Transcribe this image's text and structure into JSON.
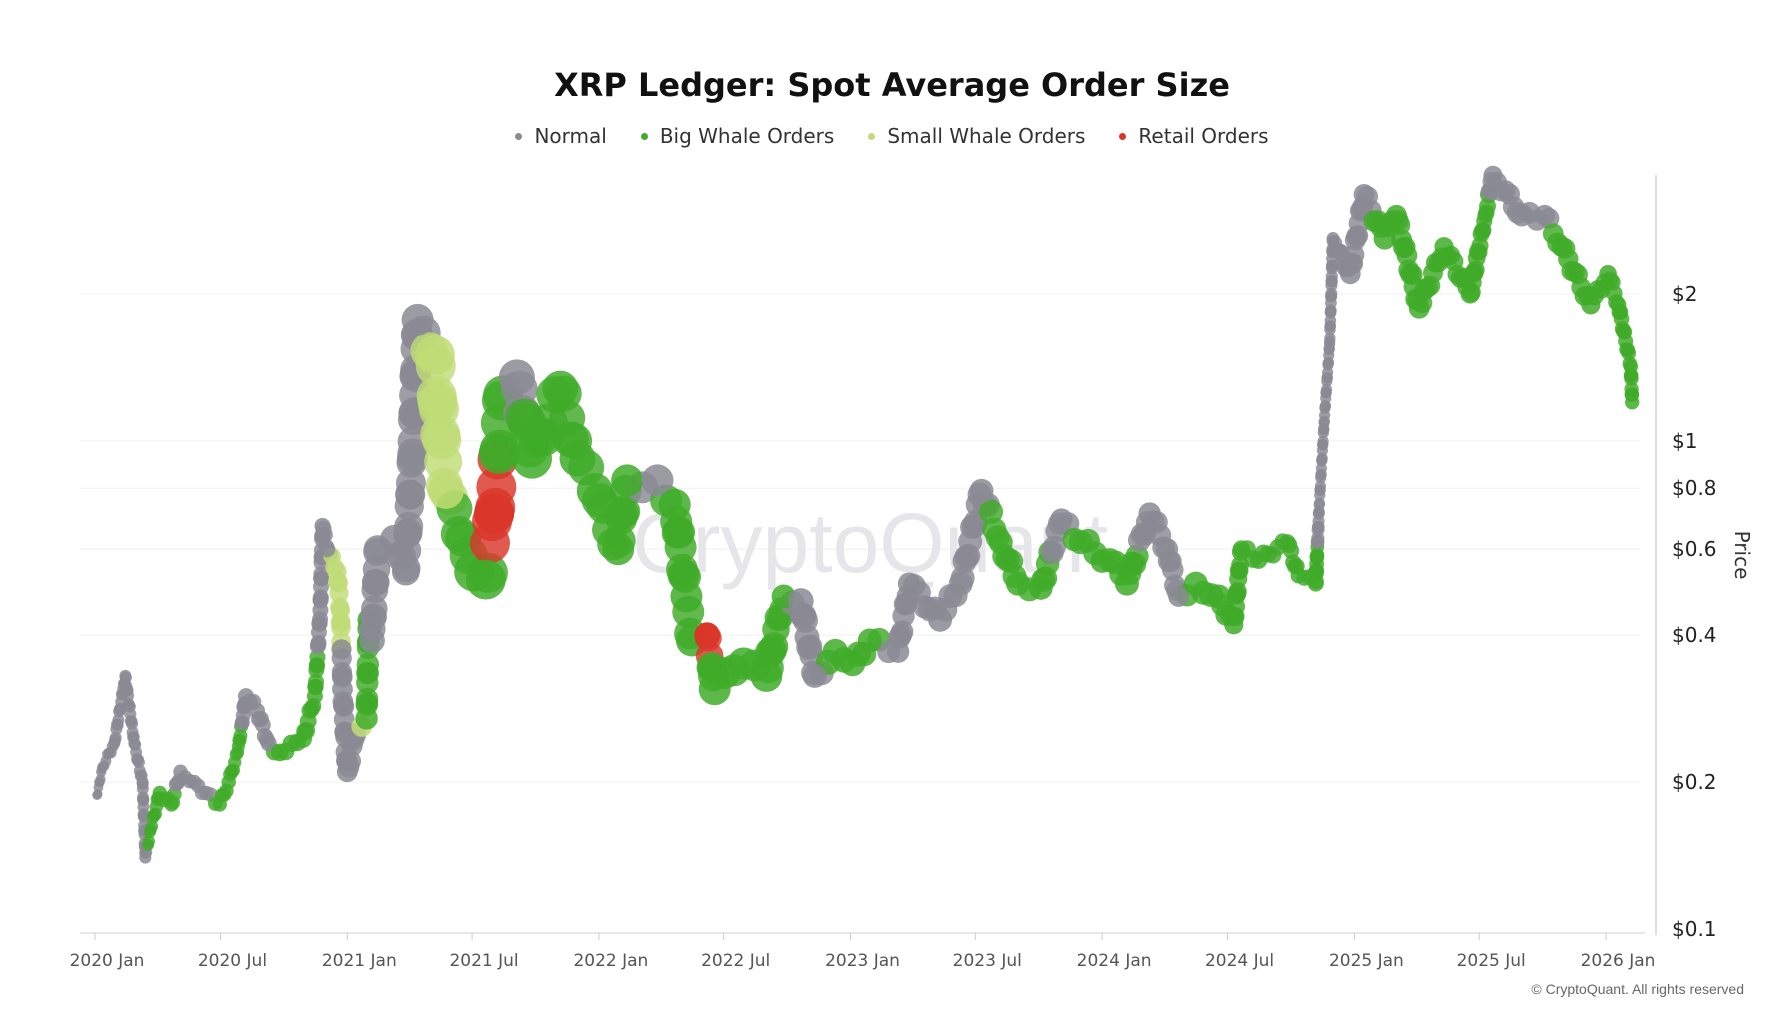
{
  "chart_data": {
    "type": "scatter",
    "title": "XRP Ledger: Spot Average Order Size",
    "ylabel": "Price",
    "xlabel": "",
    "yscale": "log",
    "ylim": [
      0.1,
      3.6
    ],
    "xlim": [
      "2019-12-20",
      "2026-03-01"
    ],
    "grid": true,
    "legend_position": "top-center",
    "watermark": "CryptoQuant",
    "copyright": "© CryptoQuant. All rights reserved",
    "y_ticks": [
      {
        "value": 0.1,
        "label": "$0.1"
      },
      {
        "value": 0.2,
        "label": "$0.2"
      },
      {
        "value": 0.4,
        "label": "$0.4"
      },
      {
        "value": 0.6,
        "label": "$0.6"
      },
      {
        "value": 0.8,
        "label": "$0.8"
      },
      {
        "value": 1,
        "label": "$1"
      },
      {
        "value": 2,
        "label": "$2"
      }
    ],
    "x_ticks": [
      {
        "date": "2020-01-01",
        "label": "2020 Jan"
      },
      {
        "date": "2020-07-01",
        "label": "2020 Jul"
      },
      {
        "date": "2021-01-01",
        "label": "2021 Jan"
      },
      {
        "date": "2021-07-01",
        "label": "2021 Jul"
      },
      {
        "date": "2022-01-01",
        "label": "2022 Jan"
      },
      {
        "date": "2022-07-01",
        "label": "2022 Jul"
      },
      {
        "date": "2023-01-01",
        "label": "2023 Jan"
      },
      {
        "date": "2023-07-01",
        "label": "2023 Jul"
      },
      {
        "date": "2024-01-01",
        "label": "2024 Jan"
      },
      {
        "date": "2024-07-01",
        "label": "2024 Jul"
      },
      {
        "date": "2025-01-01",
        "label": "2025 Jan"
      },
      {
        "date": "2025-07-01",
        "label": "2025 Jul"
      },
      {
        "date": "2026-01-01",
        "label": "2026 Jan"
      }
    ],
    "categories": [
      {
        "key": "normal",
        "name": "Normal",
        "color": "#8a8994"
      },
      {
        "key": "big",
        "name": "Big Whale Orders",
        "color": "#3fab28"
      },
      {
        "key": "small",
        "name": "Small Whale Orders",
        "color": "#bfdc75"
      },
      {
        "key": "retail",
        "name": "Retail Orders",
        "color": "#d9362a"
      }
    ],
    "point_fields": [
      "date",
      "price",
      "category",
      "relative_order_size"
    ],
    "points": [
      [
        "2020-01-04",
        0.188,
        "normal",
        1.2
      ],
      [
        "2020-01-12",
        0.215,
        "normal",
        1.3
      ],
      [
        "2020-01-29",
        0.24,
        "normal",
        1.5
      ],
      [
        "2020-02-11",
        0.31,
        "normal",
        1.5
      ],
      [
        "2020-02-14",
        0.33,
        "normal",
        1.5
      ],
      [
        "2020-02-27",
        0.24,
        "normal",
        1.5
      ],
      [
        "2020-03-10",
        0.2,
        "normal",
        1.5
      ],
      [
        "2020-03-14",
        0.14,
        "normal",
        1.5
      ],
      [
        "2020-03-22",
        0.16,
        "big",
        1.5
      ],
      [
        "2020-04-04",
        0.19,
        "big",
        1.8
      ],
      [
        "2020-04-21",
        0.18,
        "big",
        1.8
      ],
      [
        "2020-05-04",
        0.21,
        "normal",
        1.8
      ],
      [
        "2020-05-24",
        0.2,
        "normal",
        1.8
      ],
      [
        "2020-06-10",
        0.19,
        "normal",
        1.8
      ],
      [
        "2020-06-30",
        0.18,
        "big",
        1.8
      ],
      [
        "2020-07-13",
        0.2,
        "big",
        1.8
      ],
      [
        "2020-07-26",
        0.23,
        "big",
        1.6
      ],
      [
        "2020-08-07",
        0.3,
        "normal",
        2
      ],
      [
        "2020-08-23",
        0.28,
        "normal",
        2
      ],
      [
        "2020-09-09",
        0.24,
        "normal",
        2
      ],
      [
        "2020-09-25",
        0.23,
        "big",
        2.2
      ],
      [
        "2020-10-12",
        0.24,
        "big",
        2.2
      ],
      [
        "2020-10-29",
        0.245,
        "big",
        2.2
      ],
      [
        "2020-11-15",
        0.3,
        "big",
        2
      ],
      [
        "2020-11-23",
        0.45,
        "normal",
        2
      ],
      [
        "2020-11-26",
        0.67,
        "normal",
        2
      ],
      [
        "2020-12-03",
        0.6,
        "normal",
        2
      ],
      [
        "2020-12-17",
        0.54,
        "small",
        2.4
      ],
      [
        "2020-12-22",
        0.45,
        "small",
        2.4
      ],
      [
        "2020-12-25",
        0.31,
        "normal",
        2.6
      ],
      [
        "2021-01-01",
        0.21,
        "normal",
        2.6
      ],
      [
        "2021-01-12",
        0.25,
        "normal",
        2.8
      ],
      [
        "2021-01-22",
        0.26,
        "small",
        2.6
      ],
      [
        "2021-01-29",
        0.27,
        "big",
        2.8
      ],
      [
        "2021-02-01",
        0.43,
        "big",
        2.8
      ],
      [
        "2021-02-06",
        0.39,
        "normal",
        3.2
      ],
      [
        "2021-02-14",
        0.6,
        "normal",
        3.5
      ],
      [
        "2021-03-10",
        0.63,
        "normal",
        3.5
      ],
      [
        "2021-03-27",
        0.54,
        "normal",
        3.5
      ],
      [
        "2021-04-05",
        0.92,
        "normal",
        3.8
      ],
      [
        "2021-04-13",
        1.77,
        "normal",
        4
      ],
      [
        "2021-05-08",
        1.5,
        "small",
        5
      ],
      [
        "2021-05-12",
        1.2,
        "small",
        5
      ],
      [
        "2021-05-16",
        1.03,
        "small",
        5
      ],
      [
        "2021-05-24",
        0.79,
        "small",
        4.5
      ],
      [
        "2021-06-18",
        0.63,
        "big",
        4.5
      ],
      [
        "2021-07-04",
        0.54,
        "big",
        5
      ],
      [
        "2021-07-21",
        0.52,
        "big",
        5
      ],
      [
        "2021-08-02",
        0.71,
        "retail",
        5
      ],
      [
        "2021-08-15",
        1.24,
        "big",
        5
      ],
      [
        "2021-09-04",
        1.35,
        "normal",
        4.5
      ],
      [
        "2021-09-26",
        0.92,
        "big",
        5
      ],
      [
        "2021-11-06",
        1.28,
        "big",
        4.5
      ],
      [
        "2021-12-01",
        0.92,
        "big",
        4.5
      ],
      [
        "2021-12-26",
        0.79,
        "big",
        4.5
      ],
      [
        "2022-01-29",
        0.6,
        "big",
        4
      ],
      [
        "2022-02-11",
        0.83,
        "big",
        4
      ],
      [
        "2022-03-27",
        0.83,
        "normal",
        4
      ],
      [
        "2022-04-21",
        0.74,
        "big",
        4
      ],
      [
        "2022-05-08",
        0.48,
        "big",
        4
      ],
      [
        "2022-05-16",
        0.39,
        "big",
        4
      ],
      [
        "2022-06-07",
        0.4,
        "retail",
        3.2
      ],
      [
        "2022-06-18",
        0.31,
        "big",
        4
      ],
      [
        "2022-07-30",
        0.35,
        "big",
        4
      ],
      [
        "2022-09-01",
        0.33,
        "big",
        4
      ],
      [
        "2022-09-26",
        0.48,
        "big",
        3
      ],
      [
        "2022-10-21",
        0.47,
        "normal",
        3.2
      ],
      [
        "2022-11-10",
        0.33,
        "normal",
        3
      ],
      [
        "2022-12-10",
        0.37,
        "big",
        3.2
      ],
      [
        "2023-01-04",
        0.35,
        "big",
        3.2
      ],
      [
        "2023-01-29",
        0.39,
        "big",
        3
      ],
      [
        "2023-03-11",
        0.37,
        "normal",
        2.8
      ],
      [
        "2023-03-27",
        0.51,
        "normal",
        2.8
      ],
      [
        "2023-05-11",
        0.43,
        "normal",
        3
      ],
      [
        "2023-06-10",
        0.51,
        "normal",
        3
      ],
      [
        "2023-07-10",
        0.79,
        "normal",
        3
      ],
      [
        "2023-08-07",
        0.62,
        "big",
        3
      ],
      [
        "2023-09-01",
        0.51,
        "big",
        3
      ],
      [
        "2023-10-04",
        0.5,
        "big",
        3
      ],
      [
        "2023-11-03",
        0.69,
        "normal",
        2.8
      ],
      [
        "2023-12-01",
        0.62,
        "big",
        3
      ],
      [
        "2024-01-12",
        0.57,
        "big",
        3
      ],
      [
        "2024-02-06",
        0.51,
        "big",
        3
      ],
      [
        "2024-03-10",
        0.71,
        "normal",
        2.8
      ],
      [
        "2024-04-04",
        0.6,
        "normal",
        2.8
      ],
      [
        "2024-04-21",
        0.48,
        "normal",
        2.6
      ],
      [
        "2024-05-16",
        0.51,
        "big",
        3
      ],
      [
        "2024-06-18",
        0.48,
        "big",
        3
      ],
      [
        "2024-07-10",
        0.42,
        "big",
        2.4
      ],
      [
        "2024-07-21",
        0.6,
        "big",
        2.2
      ],
      [
        "2024-08-15",
        0.57,
        "big",
        2.2
      ],
      [
        "2024-09-26",
        0.62,
        "big",
        2
      ],
      [
        "2024-10-12",
        0.53,
        "big",
        2
      ],
      [
        "2024-11-06",
        0.51,
        "big",
        2
      ],
      [
        "2024-11-11",
        0.74,
        "normal",
        1.4
      ],
      [
        "2024-11-18",
        1.09,
        "normal",
        1.4
      ],
      [
        "2024-11-26",
        1.58,
        "normal",
        1.4
      ],
      [
        "2024-12-01",
        2.6,
        "normal",
        1.6
      ],
      [
        "2024-12-26",
        2.2,
        "normal",
        2.6
      ],
      [
        "2025-01-15",
        3.2,
        "normal",
        2.6
      ],
      [
        "2025-02-14",
        2.6,
        "big",
        2.8
      ],
      [
        "2025-03-03",
        2.9,
        "big",
        2.6
      ],
      [
        "2025-04-05",
        1.87,
        "big",
        2.6
      ],
      [
        "2025-05-11",
        2.5,
        "big",
        2.4
      ],
      [
        "2025-06-18",
        2.0,
        "big",
        2.4
      ],
      [
        "2025-07-10",
        2.9,
        "big",
        2
      ],
      [
        "2025-07-21",
        3.5,
        "normal",
        2.4
      ],
      [
        "2025-09-01",
        2.9,
        "normal",
        2.8
      ],
      [
        "2025-10-04",
        2.9,
        "normal",
        2.6
      ],
      [
        "2025-10-29",
        2.5,
        "big",
        2.6
      ],
      [
        "2025-12-10",
        1.9,
        "big",
        2.4
      ],
      [
        "2026-01-04",
        2.2,
        "big",
        2.2
      ],
      [
        "2026-01-19",
        1.9,
        "big",
        2
      ],
      [
        "2026-02-06",
        1.42,
        "big",
        1.8
      ],
      [
        "2026-02-08",
        1.2,
        "big",
        1.8
      ]
    ]
  }
}
